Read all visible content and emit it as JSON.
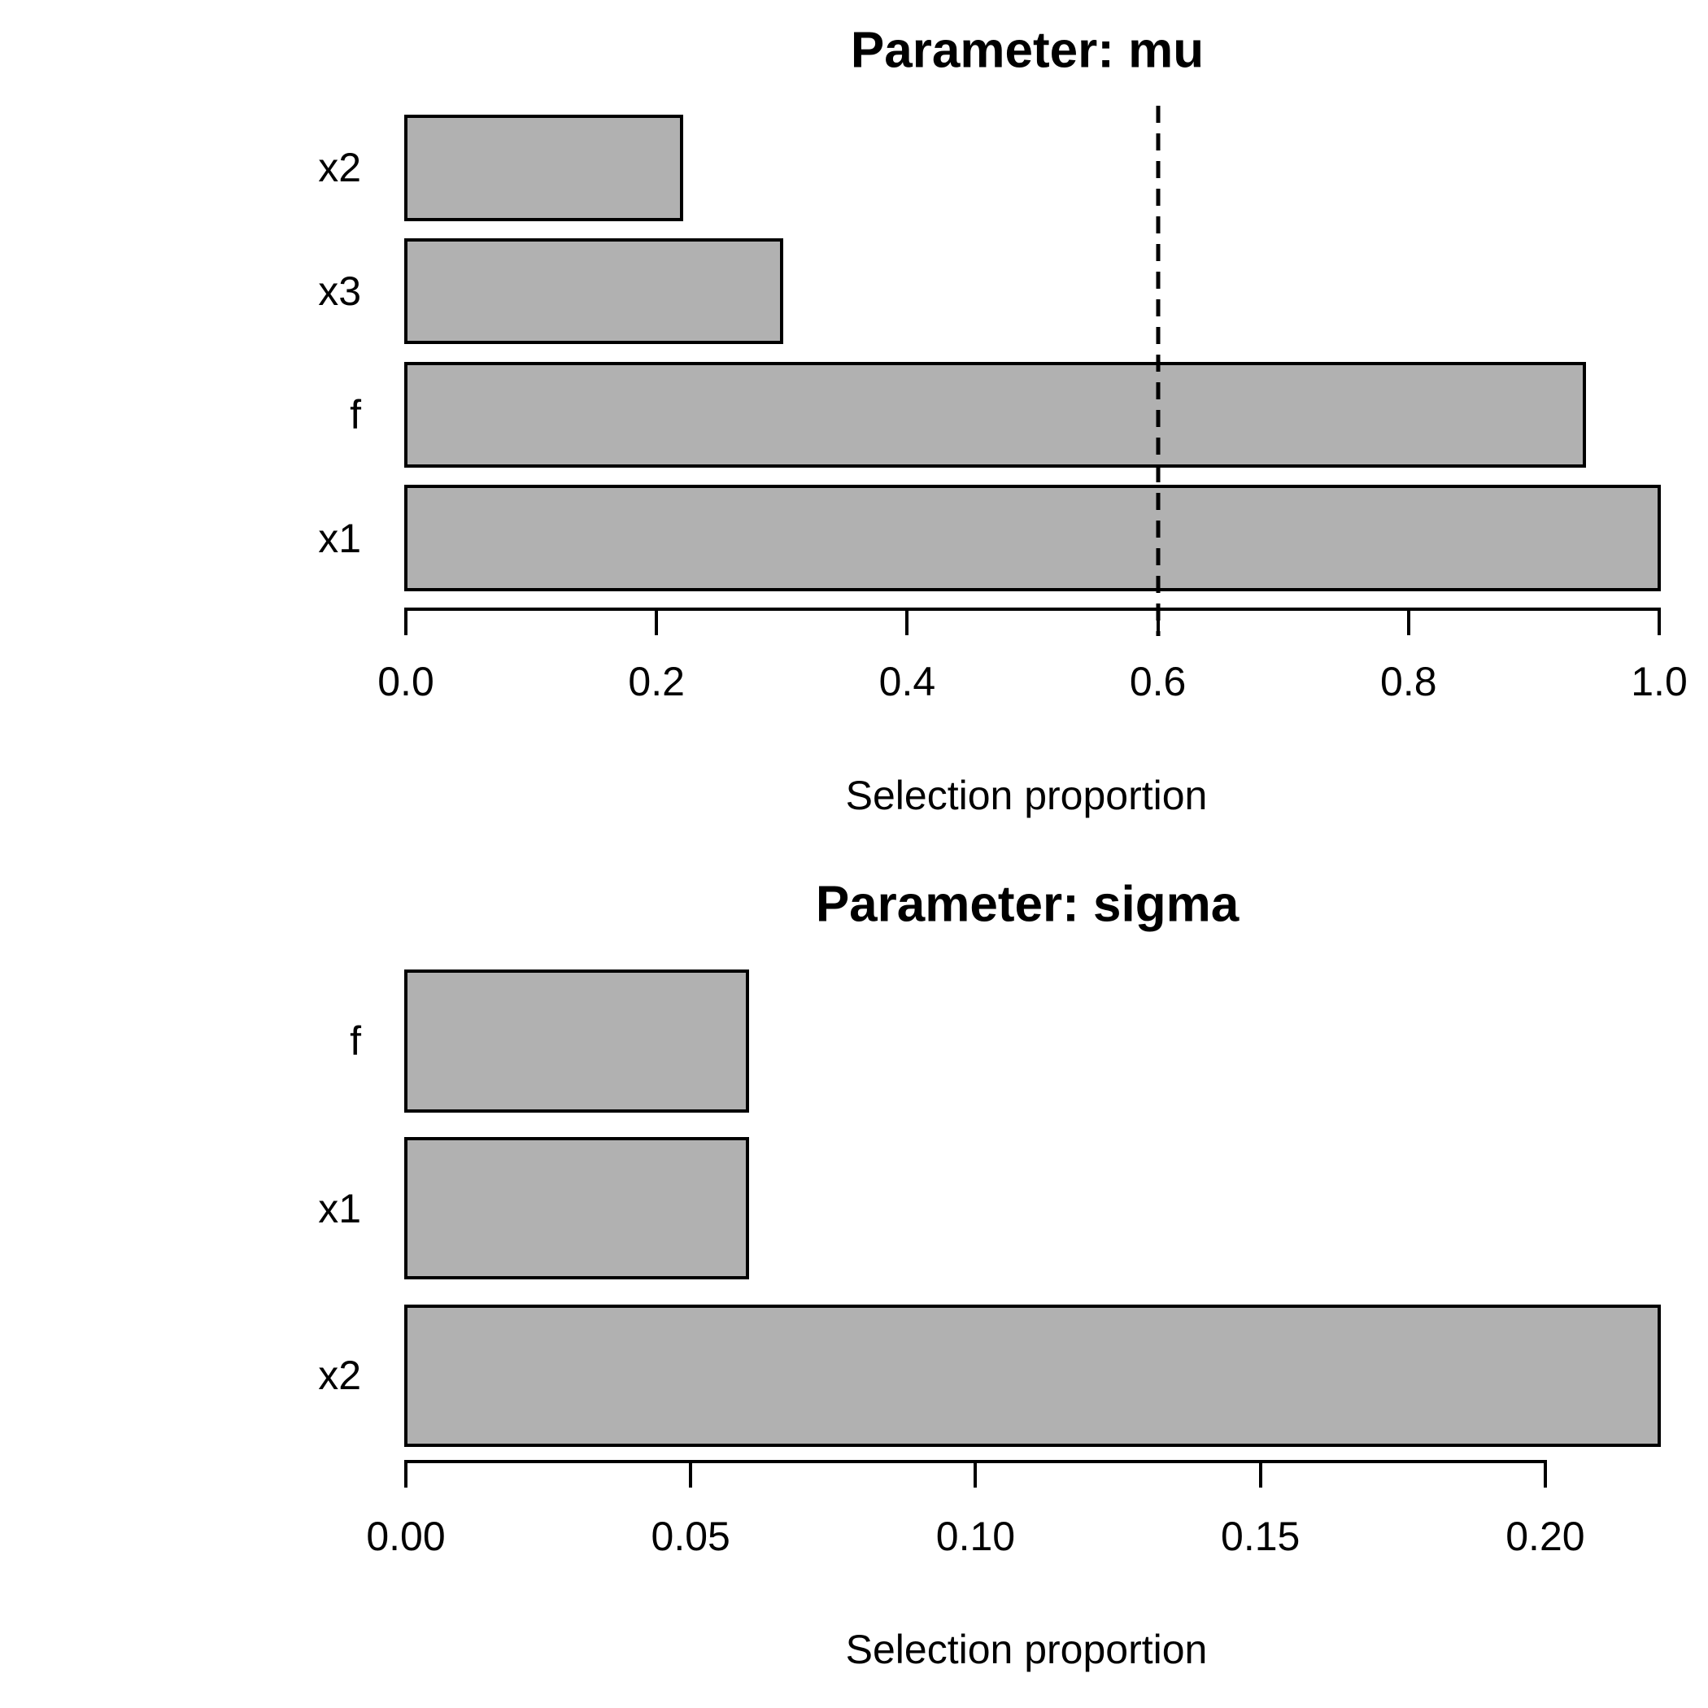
{
  "figure": {
    "background": "#ffffff",
    "text_color": "#000000",
    "bar_fill": "#b1b1b1",
    "bar_border": "#000000",
    "axis_color": "#000000"
  },
  "chart_data": [
    {
      "type": "bar",
      "orientation": "horizontal",
      "title": "Parameter: mu",
      "categories": [
        "x2",
        "x3",
        "f",
        "x1"
      ],
      "values": [
        0.22,
        0.3,
        0.94,
        1.0
      ],
      "xlabel": "Selection proportion",
      "xlim": [
        0,
        1.0
      ],
      "xticks": [
        0,
        0.2,
        0.4,
        0.6,
        0.8,
        1.0
      ],
      "xtick_labels": [
        "0.0",
        "0.2",
        "0.4",
        "0.6",
        "0.8",
        "1.0"
      ],
      "reference_line": {
        "value": 0.6,
        "style": "dashed",
        "color": "#000000"
      },
      "bar_color": "#b1b1b1",
      "grid": false,
      "legend": false
    },
    {
      "type": "bar",
      "orientation": "horizontal",
      "title": "Parameter: sigma",
      "categories": [
        "f",
        "x1",
        "x2"
      ],
      "values": [
        0.06,
        0.06,
        0.22
      ],
      "xlabel": "Selection proportion",
      "xlim": [
        0,
        0.22
      ],
      "xticks": [
        0,
        0.05,
        0.1,
        0.15,
        0.2
      ],
      "xtick_labels": [
        "0.00",
        "0.05",
        "0.10",
        "0.15",
        "0.20"
      ],
      "reference_line": null,
      "bar_color": "#b1b1b1",
      "grid": false,
      "legend": false
    }
  ]
}
